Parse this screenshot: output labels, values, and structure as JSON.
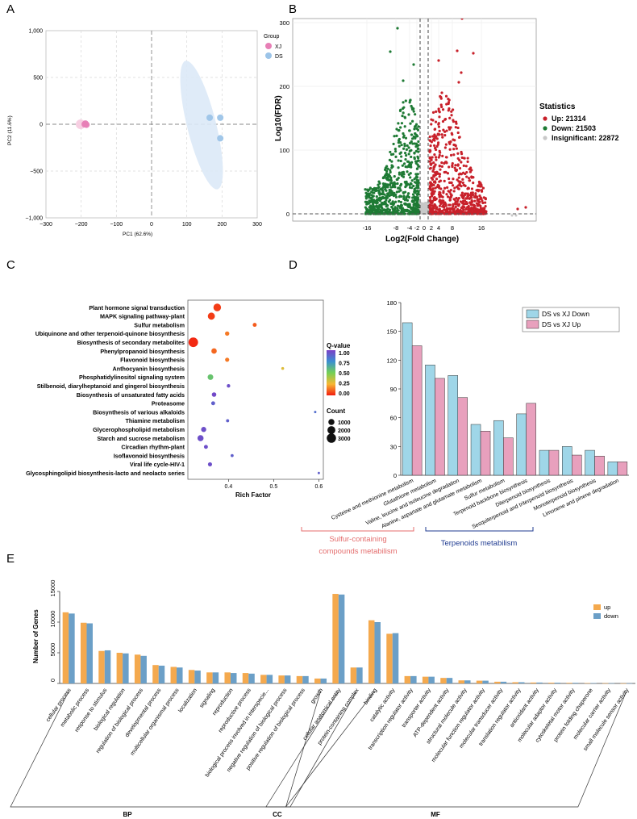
{
  "chart_data": [
    {
      "panel": "A",
      "type": "scatter",
      "xlabel": "PC1 (62.6%)",
      "ylabel": "PC2 (11.6%)",
      "xlim": [
        -300,
        300
      ],
      "ylim": [
        -1000,
        1000
      ],
      "xticks": [
        "−300",
        "−200",
        "−100",
        "0",
        "100",
        "200",
        "300"
      ],
      "yticks": [
        "1,000",
        "500",
        "0",
        "−500",
        "−1,000"
      ],
      "legend_title": "Group",
      "series": [
        {
          "name": "XJ",
          "color": "#e77fb6",
          "points": [
            [
              -190,
              0
            ],
            [
              -185,
              -5
            ],
            [
              -188,
              8
            ]
          ]
        },
        {
          "name": "DS",
          "color": "#9cc4e8",
          "points": [
            [
              165,
              70
            ],
            [
              195,
              70
            ],
            [
              195,
              -150
            ]
          ]
        }
      ]
    },
    {
      "panel": "B",
      "type": "scatter",
      "xlabel": "Log2(Fold Change)",
      "ylabel": "Log10(FDR)",
      "ylim": [
        0,
        305
      ],
      "xticks": [
        "-16",
        "-8",
        "-4",
        "-2",
        "0",
        "2",
        "4",
        "8",
        "16"
      ],
      "yticks": [
        "0",
        "100",
        "200",
        "300"
      ],
      "legend_title": "Statistics",
      "series": [
        {
          "name": "Up: 21314",
          "color": "#c8202a"
        },
        {
          "name": "Down: 21503",
          "color": "#1e7a34"
        },
        {
          "name": "Insignificant: 22872",
          "color": "#c8c8c8"
        }
      ]
    },
    {
      "panel": "C",
      "type": "scatter",
      "xlabel": "Rich Factor",
      "xlim": [
        0.31,
        0.61
      ],
      "xticks": [
        "0.4",
        "0.5",
        "0.6"
      ],
      "categories": [
        "Plant hormone signal transduction",
        "MAPK signaling pathway-plant",
        "Sulfur metabolism",
        "Ubiquinone and other terpenoid-quinone biosynthesis",
        "Biosynthesis of secondary metabolites",
        "Phenylpropanoid biosynthesis",
        "Flavonoid biosynthesis",
        "Anthocyanin biosynthesis",
        "Phosphatidylinositol signaling system",
        "Stilbenoid, diarylheptanoid and gingerol biosynthesis",
        "Biosynthesis of unsaturated fatty acids",
        "Proteasome",
        "Biosynthesis of various alkaloids",
        "Thiamine metabolism",
        "Glycerophospholipid metabolism",
        "Starch and sucrose metabolism",
        "Circadian rhythm-plant",
        "Isoflavonoid biosynthesis",
        "Viral life cycle-HIV-1",
        "Glycosphingolipid biosynthesis-lacto and neolacto series"
      ],
      "rich_factor": [
        0.375,
        0.362,
        0.458,
        0.397,
        0.322,
        0.368,
        0.397,
        0.52,
        0.36,
        0.4,
        0.368,
        0.366,
        0.592,
        0.398,
        0.345,
        0.338,
        0.35,
        0.408,
        0.359,
        0.6
      ],
      "qvalue": [
        0.05,
        0.05,
        0.1,
        0.15,
        0.02,
        0.12,
        0.15,
        0.3,
        0.55,
        0.95,
        0.97,
        0.9,
        0.85,
        0.9,
        0.95,
        0.95,
        0.95,
        0.9,
        0.95,
        0.9
      ],
      "count": [
        1800,
        1500,
        250,
        350,
        3200,
        700,
        300,
        60,
        800,
        150,
        400,
        250,
        20,
        100,
        600,
        1000,
        250,
        80,
        300,
        15
      ],
      "legend_q_title": "Q-value",
      "legend_q_ticks": [
        "1.00",
        "0.75",
        "0.50",
        "0.25",
        "0.00"
      ],
      "legend_count_title": "Count",
      "legend_count_labels": [
        "1000",
        "2000",
        "3000"
      ],
      "legend_count_values": [
        1000,
        2000,
        3000
      ]
    },
    {
      "panel": "D",
      "type": "bar",
      "ylim": [
        0,
        180
      ],
      "yticks": [
        "0",
        "30",
        "60",
        "90",
        "120",
        "150",
        "180"
      ],
      "categories": [
        "Cysteine and methionine metabolism",
        "Glutathione metabolism",
        "Valine, leucine and isoleucine degradation",
        "Alanine, aspartate and glutamate metabolism",
        "Sulfur metabolism",
        "Terpenoid backbone biosynthesis",
        "Diterpenoid biosynthesis",
        "Sesquiterpenoid and triterpenoid biosynthesis",
        "Monoterpenoid biosynthesis",
        "Limonene and pinene degradation"
      ],
      "series": [
        {
          "name": "DS vs XJ Down",
          "color": "#9fd6e8",
          "values": [
            159,
            115,
            104,
            53,
            57,
            64,
            26,
            30,
            26,
            14
          ]
        },
        {
          "name": "DS vs XJ Up",
          "color": "#e8a0bd",
          "values": [
            135,
            101,
            81,
            46,
            39,
            75,
            26,
            21,
            20,
            14
          ]
        }
      ],
      "annotations": [
        {
          "text": "Sulfur-containing compounds metabilism",
          "color": "#e46d6d"
        },
        {
          "text": "Terpenoids metabilism",
          "color": "#1f3b91"
        }
      ]
    },
    {
      "panel": "E",
      "type": "bar",
      "ylabel": "Number of Genes",
      "ylim": [
        0,
        15000
      ],
      "yticks": [
        "0",
        "5000",
        "10000",
        "15000"
      ],
      "categories": [
        "cellular process",
        "metabolic process",
        "response to stimulus",
        "biological regulation",
        "regulation of biological process",
        "developmental process",
        "multicellular organismal process",
        "localization",
        "signaling",
        "reproduction",
        "reproductive process",
        "biological process involved in interspecie...",
        "negative regulation of biological process",
        "positive regulation of biological process",
        "growth",
        "cellular anatomical entity",
        "protein-containing complex",
        "binding",
        "catalytic activity",
        "transcription regulator activity",
        "transporter activity",
        "ATP-dependent activity",
        "structural molecule activity",
        "molecular function regulator activity",
        "molecular transducer activity",
        "translation regulator activity",
        "antioxidant activity",
        "molecular adaptor activity",
        "cytoskeletal motor activity",
        "protein folding chaperone",
        "molecular carrier activity",
        "small molecule sensor activity"
      ],
      "series": [
        {
          "name": "up",
          "color": "#f4a94e",
          "values": [
            11600,
            9900,
            5300,
            5000,
            4700,
            3000,
            2700,
            2200,
            1800,
            1800,
            1700,
            1400,
            1300,
            1200,
            800,
            14600,
            2600,
            10300,
            8100,
            1200,
            1100,
            900,
            500,
            450,
            280,
            200,
            150,
            120,
            100,
            60,
            40,
            20
          ]
        },
        {
          "name": "down",
          "color": "#6b9fc7",
          "values": [
            11400,
            9800,
            5400,
            4900,
            4500,
            2900,
            2600,
            2100,
            1800,
            1700,
            1600,
            1400,
            1300,
            1200,
            800,
            14500,
            2600,
            10000,
            8200,
            1200,
            1100,
            900,
            500,
            450,
            280,
            200,
            150,
            120,
            100,
            60,
            40,
            20
          ]
        }
      ],
      "groups": [
        {
          "name": "BP",
          "from": 0,
          "to": 14
        },
        {
          "name": "CC",
          "from": 15,
          "to": 16
        },
        {
          "name": "MF",
          "from": 17,
          "to": 31
        }
      ]
    }
  ],
  "panel_labels": {
    "a": "A",
    "b": "B",
    "c": "C",
    "d": "D",
    "e": "E"
  },
  "a": {
    "group_title": "Group",
    "legend": [
      "XJ",
      "DS"
    ]
  },
  "b": {
    "ylabel": "Log10(FDR)",
    "xlabel": "Log2(Fold Change)",
    "stats_title": "Statistics",
    "legend": [
      "Up: 21314",
      "Down: 21503",
      "Insignificant: 22872"
    ]
  },
  "c": {
    "xlabel": "Rich Factor",
    "q_title": "Q-value",
    "count_title": "Count"
  },
  "d": {
    "annot1_line1": "Sulfur-containing",
    "annot1_line2": "compounds metabilism",
    "annot2": "Terpenoids metabilism"
  },
  "e": {
    "ylabel": "Number of Genes",
    "legend_up": "up",
    "legend_down": "down"
  }
}
